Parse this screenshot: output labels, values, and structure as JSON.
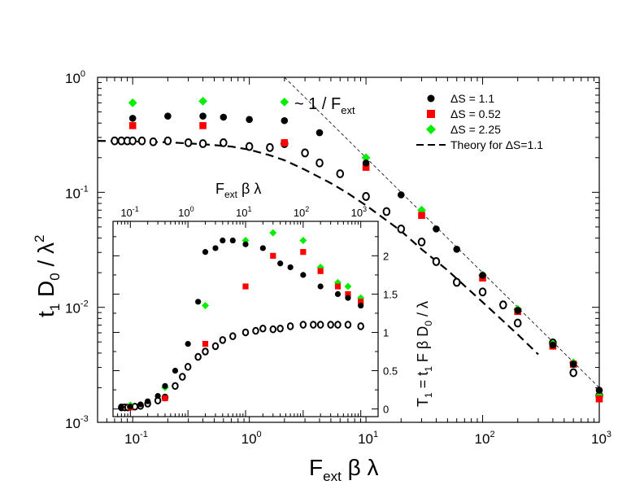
{
  "chart_data": {
    "type": "scatter",
    "main": {
      "xlabel": {
        "main": "F",
        "sub": "ext",
        "tail": " β λ"
      },
      "ylabel": {
        "a": "t",
        "a_sub": "1",
        "b": " D",
        "b_sub": "0",
        "c": " / λ",
        "c_sup": "2"
      },
      "xscale": "log",
      "yscale": "log",
      "xlim": [
        0.05,
        1000
      ],
      "ylim": [
        0.001,
        1
      ],
      "x_ticks": [
        {
          "base": "10",
          "exp": "-1",
          "value": 0.1
        },
        {
          "base": "10",
          "exp": "0",
          "value": 1
        },
        {
          "base": "10",
          "exp": "1",
          "value": 10
        },
        {
          "base": "10",
          "exp": "2",
          "value": 100
        },
        {
          "base": "10",
          "exp": "3",
          "value": 1000
        }
      ],
      "y_ticks": [
        {
          "base": "10",
          "exp": "-3",
          "value": 0.001
        },
        {
          "base": "10",
          "exp": "-2",
          "value": 0.01
        },
        {
          "base": "10",
          "exp": "-1",
          "value": 0.1
        },
        {
          "base": "10",
          "exp": "0",
          "value": 1
        }
      ],
      "annotation": {
        "text": "~ 1 / F",
        "sub": "ext"
      },
      "series": [
        {
          "name": "ΔS = 1.1",
          "marker": "circle",
          "color": "#000000",
          "x": [
            0.1,
            0.2,
            0.4,
            0.6,
            1,
            2,
            4,
            10,
            20,
            40,
            60,
            100,
            200,
            400,
            600,
            1000
          ],
          "y": [
            0.44,
            0.46,
            0.46,
            0.45,
            0.43,
            0.42,
            0.33,
            0.18,
            0.095,
            0.048,
            0.032,
            0.019,
            0.0094,
            0.0047,
            0.0032,
            0.0019
          ]
        },
        {
          "name": "ΔS = 0.52",
          "marker": "square",
          "color": "#ff0000",
          "x": [
            0.1,
            0.4,
            2,
            10,
            30,
            100,
            200,
            400,
            600,
            1000
          ],
          "y": [
            0.38,
            0.38,
            0.27,
            0.165,
            0.063,
            0.018,
            0.0092,
            0.0046,
            0.0032,
            0.0016
          ]
        },
        {
          "name": "ΔS = 2.25",
          "marker": "diamond",
          "color": "#00ee00",
          "x": [
            0.1,
            0.4,
            2,
            10,
            30,
            100,
            200,
            400,
            600,
            1000
          ],
          "y": [
            0.6,
            0.62,
            0.61,
            0.2,
            0.07,
            0.019,
            0.0096,
            0.0048,
            0.0033,
            0.0017
          ]
        },
        {
          "name": "ΔS = 1.1 (open)",
          "marker": "open-circle",
          "color": "#000000",
          "x": [
            0.07,
            0.08,
            0.09,
            0.1,
            0.12,
            0.15,
            0.2,
            0.3,
            0.4,
            0.6,
            1,
            1.5,
            2,
            3,
            4,
            6,
            10,
            15,
            20,
            30,
            40,
            60,
            100,
            150,
            200,
            400,
            600,
            1000
          ],
          "y": [
            0.28,
            0.28,
            0.28,
            0.28,
            0.28,
            0.275,
            0.28,
            0.27,
            0.265,
            0.27,
            0.25,
            0.245,
            0.265,
            0.22,
            0.18,
            0.145,
            0.092,
            0.068,
            0.048,
            0.037,
            0.025,
            0.0165,
            0.0136,
            0.0105,
            0.0073,
            0.0049,
            0.0027,
            0.0017
          ]
        }
      ],
      "theory_curve": {
        "name": "Theory for ΔS=1.1",
        "x": [
          0.05,
          0.1,
          0.2,
          0.4,
          0.7,
          1,
          1.5,
          2,
          3,
          5,
          7,
          10,
          15,
          20,
          30,
          50,
          70,
          100,
          150,
          200,
          300
        ],
        "y": [
          0.28,
          0.277,
          0.272,
          0.262,
          0.25,
          0.235,
          0.21,
          0.19,
          0.157,
          0.12,
          0.098,
          0.077,
          0.057,
          0.046,
          0.032,
          0.021,
          0.0154,
          0.0111,
          0.0076,
          0.0058,
          0.0039
        ]
      },
      "guide_line": {
        "name": "~ 1 / F_ext",
        "x": [
          2,
          1000
        ],
        "y": [
          1,
          0.002
        ]
      }
    },
    "inset": {
      "xlabel": {
        "main": "F",
        "sub": "ext",
        "tail": " β λ"
      },
      "ylabel": {
        "a": "T",
        "a_sub": "1",
        "b": " = t",
        "b_sub": "1",
        "c": " F β D",
        "c_sub": "0",
        "d": " / λ"
      },
      "xscale": "log",
      "yscale": "linear",
      "xlim": [
        0.05,
        2000
      ],
      "ylim": [
        -0.1,
        2.45
      ],
      "x_ticks": [
        {
          "base": "10",
          "exp": "-1",
          "value": 0.1
        },
        {
          "base": "10",
          "exp": "0",
          "value": 1
        },
        {
          "base": "10",
          "exp": "1",
          "value": 10
        },
        {
          "base": "10",
          "exp": "2",
          "value": 100
        },
        {
          "base": "10",
          "exp": "3",
          "value": 1000
        }
      ],
      "y_ticks": [
        {
          "label": "0",
          "value": 0
        },
        {
          "label": "0.5",
          "value": 0.5
        },
        {
          "label": "1",
          "value": 1
        },
        {
          "label": "1.5",
          "value": 1.5
        },
        {
          "label": "2",
          "value": 2
        }
      ],
      "series": [
        {
          "name": "ΔS = 1.1",
          "marker": "circle",
          "color": "#000000",
          "x": [
            0.07,
            0.1,
            0.15,
            0.2,
            0.3,
            0.4,
            0.6,
            1,
            1.5,
            2,
            3,
            4,
            6,
            10,
            20,
            40,
            60,
            100,
            200,
            400,
            600,
            1000
          ],
          "y": [
            0.02,
            0.03,
            0.06,
            0.1,
            0.17,
            0.3,
            0.5,
            0.85,
            1.4,
            2.05,
            2.1,
            2.2,
            2.2,
            2.15,
            2.1,
            1.9,
            1.85,
            1.75,
            1.6,
            1.5,
            1.45,
            1.35
          ]
        },
        {
          "name": "ΔS = 0.52",
          "marker": "square",
          "color": "#ff0000",
          "x": [
            0.1,
            0.4,
            2,
            10,
            30,
            100,
            200,
            400,
            600,
            1000
          ],
          "y": [
            0.02,
            0.14,
            0.85,
            1.6,
            2.0,
            2.05,
            1.8,
            1.6,
            1.5,
            1.4
          ]
        },
        {
          "name": "ΔS = 2.25",
          "marker": "diamond",
          "color": "#00ee00",
          "x": [
            0.1,
            0.4,
            2,
            10,
            30,
            100,
            200,
            400,
            600,
            1000
          ],
          "y": [
            0.05,
            0.28,
            1.35,
            2.2,
            2.3,
            2.2,
            1.85,
            1.65,
            1.6,
            1.45
          ]
        },
        {
          "name": "ΔS = 1.1 (open)",
          "marker": "open-circle",
          "color": "#000000",
          "x": [
            0.07,
            0.08,
            0.09,
            0.1,
            0.12,
            0.15,
            0.2,
            0.3,
            0.4,
            0.6,
            0.8,
            1,
            1.5,
            2,
            3,
            4,
            6,
            10,
            15,
            20,
            30,
            40,
            60,
            100,
            150,
            200,
            300,
            400,
            600,
            1000
          ],
          "y": [
            0.02,
            0.02,
            0.02,
            0.03,
            0.03,
            0.04,
            0.07,
            0.11,
            0.15,
            0.3,
            0.42,
            0.55,
            0.68,
            0.75,
            0.82,
            0.9,
            0.95,
            1.0,
            1.02,
            1.05,
            1.04,
            1.05,
            1.08,
            1.1,
            1.1,
            1.1,
            1.1,
            1.1,
            1.1,
            1.08
          ]
        }
      ]
    },
    "legend": {
      "position": "top-right",
      "entries": [
        {
          "label": "ΔS = 1.1",
          "marker": "circle",
          "color": "#000000"
        },
        {
          "label": "ΔS = 0.52",
          "marker": "square",
          "color": "#ff0000"
        },
        {
          "label": "ΔS = 2.25",
          "marker": "diamond",
          "color": "#00ee00"
        },
        {
          "label": "Theory for ΔS=1.1",
          "marker": "dashed-line",
          "color": "#000000"
        }
      ]
    }
  }
}
